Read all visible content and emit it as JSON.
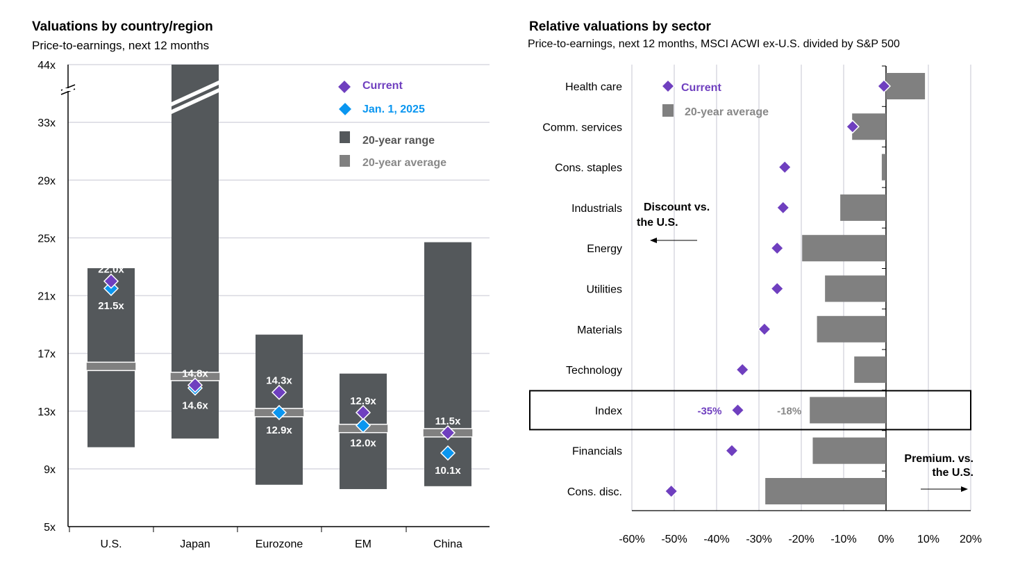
{
  "chart_data": [
    {
      "type": "range",
      "title": "Valuations by country/region",
      "subtitle": "Price-to-earnings, next 12 months",
      "ylim": [
        5,
        44
      ],
      "y_ticks": [
        "5x",
        "9x",
        "13x",
        "17x",
        "21x",
        "25x",
        "29x",
        "33x",
        "44x"
      ],
      "y_tick_values": [
        5,
        9,
        13,
        17,
        21,
        25,
        29,
        33,
        44
      ],
      "axis_break": true,
      "categories": [
        "U.S.",
        "Japan",
        "Eurozone",
        "EM",
        "China"
      ],
      "range_low": [
        10.5,
        11.1,
        7.9,
        7.6,
        7.8
      ],
      "range_high": [
        22.9,
        44,
        18.3,
        15.6,
        24.7
      ],
      "average": [
        16.1,
        15.4,
        12.9,
        11.8,
        11.5
      ],
      "current": [
        22.0,
        14.8,
        14.3,
        12.9,
        11.5
      ],
      "jan": [
        21.5,
        14.6,
        12.9,
        12.0,
        10.1
      ],
      "current_labels": [
        "22.0x",
        "14.8x",
        "14.3x",
        "12.9x",
        "11.5x"
      ],
      "jan_labels": [
        "21.5x",
        "14.6x",
        "12.9x",
        "12.0x",
        "10.1x"
      ],
      "legend": [
        "Current",
        "Jan. 1, 2025",
        "20-year range",
        "20-year average"
      ],
      "legend_placement": "top-right"
    },
    {
      "type": "bar",
      "orientation": "horizontal",
      "title": "Relative valuations by sector",
      "subtitle": "Price-to-earnings, next 12 months, MSCI ACWI ex-U.S. divided by S&P 500",
      "xlim": [
        -60,
        20
      ],
      "x_ticks": [
        "-60%",
        "-50%",
        "-40%",
        "-30%",
        "-20%",
        "-10%",
        "0%",
        "10%",
        "20%"
      ],
      "x_tick_values": [
        -60,
        -50,
        -40,
        -30,
        -20,
        -10,
        0,
        10,
        20
      ],
      "categories": [
        "Health care",
        "Comm. services",
        "Cons. staples",
        "Industrials",
        "Energy",
        "Utilities",
        "Materials",
        "Technology",
        "Index",
        "Financials",
        "Cons. disc."
      ],
      "average": [
        9.2,
        -8.0,
        -1.0,
        -10.8,
        -19.8,
        -14.4,
        -16.3,
        -7.5,
        -18,
        -17.3,
        -28.5
      ],
      "current": [
        -0.5,
        -7.9,
        -23.9,
        -24.3,
        -25.7,
        -25.7,
        -28.7,
        -33.9,
        -35,
        -36.4,
        -50.7
      ],
      "highlight": "Index",
      "index_current_label": "-35%",
      "index_average_label": "-18%",
      "legend": [
        "Current",
        "20-year average"
      ],
      "legend_placement": "top-left",
      "annotations": {
        "discount": "Discount vs. the U.S.",
        "premium": "Premium. vs. the U.S."
      }
    }
  ],
  "colors": {
    "current": "#6f3fbf",
    "jan": "#0a96f0",
    "range": "#54585b",
    "average": "#808080",
    "grid": "#d8d8e0"
  }
}
